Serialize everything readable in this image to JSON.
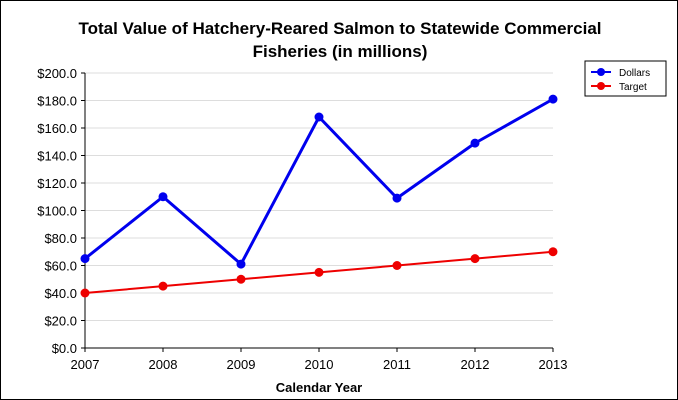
{
  "chart_data": {
    "type": "line",
    "title_line1": "Total Value of Hatchery-Reared Salmon to Statewide Commercial",
    "title_line2": "Fisheries (in millions)",
    "xlabel": "Calendar Year",
    "ylabel": "",
    "categories": [
      "2007",
      "2008",
      "2009",
      "2010",
      "2011",
      "2012",
      "2013"
    ],
    "yticks": [
      0,
      20,
      40,
      60,
      80,
      100,
      120,
      140,
      160,
      180,
      200
    ],
    "ytick_labels": [
      "$0.0",
      "$20.0",
      "$40.0",
      "$60.0",
      "$80.0",
      "$100.0",
      "$120.0",
      "$140.0",
      "$160.0",
      "$180.0",
      "$200.0"
    ],
    "ylim": [
      0,
      200
    ],
    "grid": true,
    "legend_position": "top-right",
    "series": [
      {
        "name": "Dollars",
        "color": "#0000ee",
        "values": [
          65,
          110,
          61,
          168,
          109,
          149,
          181
        ]
      },
      {
        "name": "Target",
        "color": "#ee0000",
        "values": [
          40,
          45,
          50,
          55,
          60,
          65,
          70
        ]
      }
    ]
  }
}
